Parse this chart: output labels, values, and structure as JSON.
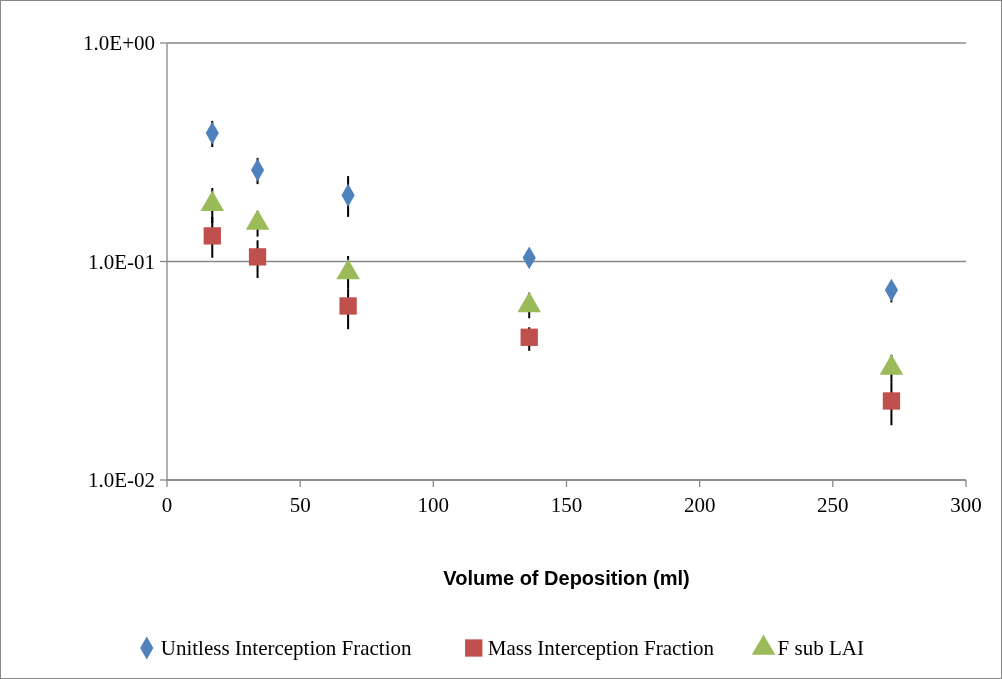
{
  "chart_data": {
    "type": "scatter",
    "xlabel": "Volume of Deposition (ml)",
    "x": [
      17,
      34,
      68,
      136,
      272
    ],
    "xlim": [
      0,
      300
    ],
    "xticks": [
      0,
      50,
      100,
      150,
      200,
      250,
      300
    ],
    "log": "y",
    "ylim": [
      0.01,
      1
    ],
    "yticks": [
      {
        "value": 0.01,
        "label": "1.0E-02"
      },
      {
        "value": 0.1,
        "label": "1.0E-01"
      },
      {
        "value": 1,
        "label": "1.0E+00"
      }
    ],
    "grid": "y",
    "legend": "bottom",
    "series": [
      {
        "name": "Unitless Interception Fraction",
        "color": "#4f81bd",
        "marker": "diamond",
        "values": [
          0.387,
          0.262,
          0.201,
          0.104,
          0.074
        ],
        "errors": [
          [
            0.334,
            0.44
          ],
          [
            0.226,
            0.298
          ],
          [
            0.16,
            0.246
          ],
          null,
          [
            0.065,
            0.08
          ]
        ]
      },
      {
        "name": "Mass Interception Fraction",
        "color": "#c0504d",
        "marker": "square",
        "values": [
          0.131,
          0.105,
          0.0626,
          0.045,
          0.023
        ],
        "errors": [
          [
            0.104,
            0.16
          ],
          [
            0.084,
            0.125
          ],
          [
            0.049,
            0.075
          ],
          [
            0.039,
            0.05
          ],
          [
            0.0178,
            0.028
          ]
        ]
      },
      {
        "name": "F sub LAI",
        "color": "#9bbb59",
        "marker": "triangle",
        "values": [
          0.183,
          0.15,
          0.089,
          0.063,
          0.0326
        ],
        "errors": [
          [
            0.15,
            0.217
          ],
          [
            0.13,
            0.17
          ],
          [
            0.075,
            0.106
          ],
          [
            0.055,
            0.072
          ],
          [
            0.028,
            0.0374
          ]
        ]
      }
    ]
  }
}
